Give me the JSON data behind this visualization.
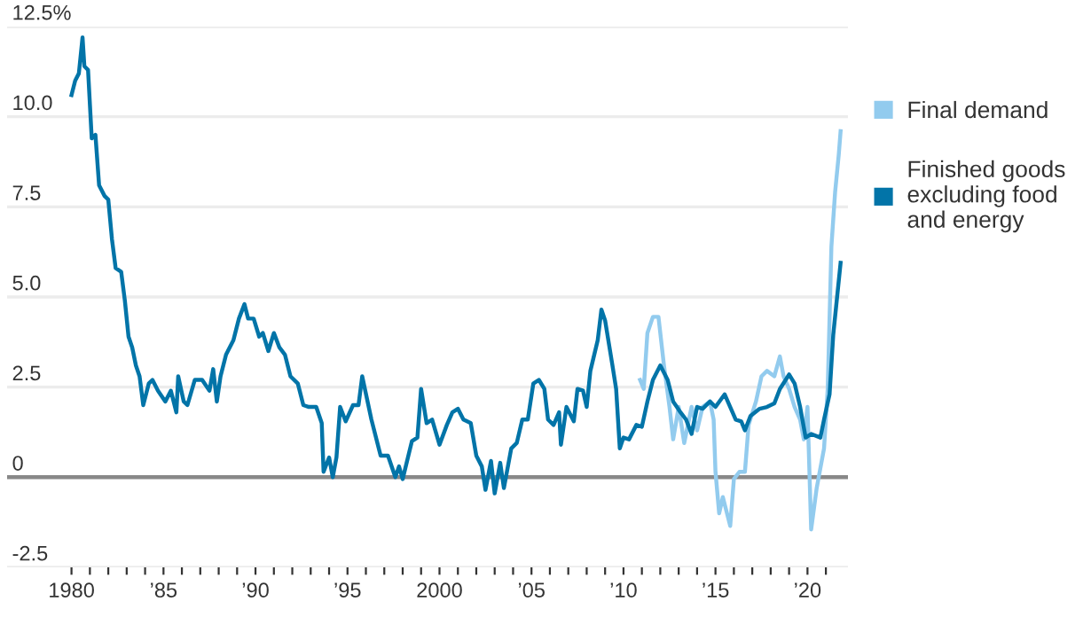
{
  "chart_data": {
    "type": "line",
    "xlim": [
      1976.5,
      2022.2
    ],
    "ylim": [
      -2.5,
      12.5
    ],
    "xticks": [
      {
        "value": 1980,
        "label": "1980"
      },
      {
        "value": 1981,
        "label": null
      },
      {
        "value": 1982,
        "label": null
      },
      {
        "value": 1983,
        "label": null
      },
      {
        "value": 1984,
        "label": null
      },
      {
        "value": 1985,
        "label": "’85"
      },
      {
        "value": 1986,
        "label": null
      },
      {
        "value": 1987,
        "label": null
      },
      {
        "value": 1988,
        "label": null
      },
      {
        "value": 1989,
        "label": null
      },
      {
        "value": 1990,
        "label": "’90"
      },
      {
        "value": 1991,
        "label": null
      },
      {
        "value": 1992,
        "label": null
      },
      {
        "value": 1993,
        "label": null
      },
      {
        "value": 1994,
        "label": null
      },
      {
        "value": 1995,
        "label": "’95"
      },
      {
        "value": 1996,
        "label": null
      },
      {
        "value": 1997,
        "label": null
      },
      {
        "value": 1998,
        "label": null
      },
      {
        "value": 1999,
        "label": null
      },
      {
        "value": 2000,
        "label": "2000"
      },
      {
        "value": 2001,
        "label": null
      },
      {
        "value": 2002,
        "label": null
      },
      {
        "value": 2003,
        "label": null
      },
      {
        "value": 2004,
        "label": null
      },
      {
        "value": 2005,
        "label": "’05"
      },
      {
        "value": 2006,
        "label": null
      },
      {
        "value": 2007,
        "label": null
      },
      {
        "value": 2008,
        "label": null
      },
      {
        "value": 2009,
        "label": null
      },
      {
        "value": 2010,
        "label": "’10"
      },
      {
        "value": 2011,
        "label": null
      },
      {
        "value": 2012,
        "label": null
      },
      {
        "value": 2013,
        "label": null
      },
      {
        "value": 2014,
        "label": null
      },
      {
        "value": 2015,
        "label": "’15"
      },
      {
        "value": 2016,
        "label": null
      },
      {
        "value": 2017,
        "label": null
      },
      {
        "value": 2018,
        "label": null
      },
      {
        "value": 2019,
        "label": null
      },
      {
        "value": 2020,
        "label": "’20"
      },
      {
        "value": 2021,
        "label": null
      }
    ],
    "yticks": [
      {
        "value": 12.5,
        "label": "12.5%"
      },
      {
        "value": 10,
        "label": "10.0"
      },
      {
        "value": 7.5,
        "label": "7.5"
      },
      {
        "value": 5,
        "label": "5.0"
      },
      {
        "value": 2.5,
        "label": "2.5"
      },
      {
        "value": 0,
        "label": "0"
      },
      {
        "value": -2.5,
        "label": "-2.5"
      }
    ],
    "grid": "y",
    "legend": "right",
    "marker": "none",
    "line_style": "solid",
    "ref_lines": [
      {
        "axis": "y",
        "value": 0,
        "color": "#888888"
      }
    ],
    "series": [
      {
        "name": "Final demand",
        "color": "#92cbee",
        "x": [
          2010.9,
          2011.1,
          2011.3,
          2011.6,
          2011.9,
          2012.2,
          2012.5,
          2012.7,
          2013.0,
          2013.3,
          2013.7,
          2014.0,
          2014.3,
          2014.7,
          2014.9,
          2015.0,
          2015.2,
          2015.4,
          2015.8,
          2016.0,
          2016.3,
          2016.6,
          2016.8,
          2017.2,
          2017.5,
          2017.8,
          2018.2,
          2018.5,
          2018.7,
          2019.0,
          2019.3,
          2019.6,
          2019.8,
          2020.0,
          2020.2,
          2020.5,
          2020.9,
          2021.1,
          2021.3,
          2021.5,
          2021.7,
          2021.8
        ],
        "values": [
          2.7,
          2.45,
          4.0,
          4.45,
          4.45,
          3.1,
          1.95,
          1.05,
          1.95,
          0.95,
          1.95,
          1.3,
          1.95,
          2.1,
          1.6,
          0.15,
          -1.0,
          -0.55,
          -1.35,
          -0.05,
          0.15,
          0.15,
          1.45,
          2.1,
          2.8,
          2.95,
          2.8,
          3.35,
          2.8,
          2.45,
          1.95,
          1.6,
          1.05,
          1.95,
          -1.45,
          -0.3,
          0.8,
          2.45,
          6.4,
          7.9,
          8.95,
          9.6
        ]
      },
      {
        "name": "Finished goods\nexcluding food\nand energy",
        "color": "#0274a8",
        "x": [
          1980.0,
          1980.2,
          1980.4,
          1980.6,
          1980.7,
          1980.9,
          1981.1,
          1981.3,
          1981.5,
          1981.8,
          1982.0,
          1982.2,
          1982.4,
          1982.7,
          1982.9,
          1983.1,
          1983.3,
          1983.5,
          1983.7,
          1983.9,
          1984.2,
          1984.4,
          1984.7,
          1985.1,
          1985.4,
          1985.7,
          1985.8,
          1986.1,
          1986.3,
          1986.7,
          1987.1,
          1987.5,
          1987.7,
          1987.9,
          1988.1,
          1988.4,
          1988.8,
          1989.1,
          1989.4,
          1989.6,
          1989.9,
          1990.2,
          1990.4,
          1990.7,
          1991.0,
          1991.3,
          1991.6,
          1991.9,
          1992.3,
          1992.6,
          1992.9,
          1993.3,
          1993.6,
          1993.7,
          1994.0,
          1994.2,
          1994.4,
          1994.6,
          1994.9,
          1995.3,
          1995.6,
          1995.8,
          1996.3,
          1996.8,
          1997.2,
          1997.6,
          1997.8,
          1998.0,
          1998.5,
          1998.8,
          1999.0,
          1999.3,
          1999.6,
          2000.0,
          2000.4,
          2000.7,
          2001.0,
          2001.3,
          2001.7,
          2002.0,
          2002.3,
          2002.5,
          2002.8,
          2003.0,
          2003.3,
          2003.5,
          2003.9,
          2004.2,
          2004.5,
          2004.8,
          2005.1,
          2005.4,
          2005.7,
          2005.9,
          2006.2,
          2006.5,
          2006.6,
          2006.9,
          2007.3,
          2007.5,
          2007.8,
          2008.0,
          2008.2,
          2008.6,
          2008.8,
          2009.0,
          2009.4,
          2009.6,
          2009.8,
          2010.0,
          2010.3,
          2010.7,
          2011.0,
          2011.3,
          2011.6,
          2012.0,
          2012.4,
          2012.7,
          2013.1,
          2013.4,
          2013.7,
          2014.0,
          2014.3,
          2014.7,
          2015.0,
          2015.5,
          2015.8,
          2016.1,
          2016.4,
          2016.6,
          2016.9,
          2017.4,
          2017.8,
          2018.2,
          2018.5,
          2019.0,
          2019.3,
          2019.6,
          2019.9,
          2020.2,
          2020.7,
          2020.9,
          2021.2,
          2021.4,
          2021.6,
          2021.8
        ],
        "values": [
          10.6,
          11.0,
          11.2,
          12.2,
          11.4,
          11.3,
          9.4,
          9.5,
          8.1,
          7.8,
          7.7,
          6.6,
          5.8,
          5.7,
          4.9,
          3.9,
          3.6,
          3.1,
          2.8,
          2.0,
          2.6,
          2.7,
          2.4,
          2.1,
          2.4,
          1.8,
          2.8,
          2.1,
          2.0,
          2.7,
          2.7,
          2.4,
          3.0,
          2.1,
          2.8,
          3.4,
          3.8,
          4.4,
          4.8,
          4.4,
          4.4,
          3.9,
          4.0,
          3.5,
          4.0,
          3.6,
          3.4,
          2.8,
          2.6,
          2.0,
          1.95,
          1.95,
          1.5,
          0.15,
          0.55,
          0.0,
          0.55,
          1.95,
          1.55,
          2.0,
          2.0,
          2.8,
          1.6,
          0.6,
          0.6,
          0.0,
          0.3,
          -0.05,
          1.0,
          1.1,
          2.45,
          1.5,
          1.6,
          0.9,
          1.45,
          1.8,
          1.9,
          1.6,
          1.5,
          0.6,
          0.3,
          -0.35,
          0.45,
          -0.45,
          0.4,
          -0.3,
          0.8,
          0.95,
          1.6,
          1.6,
          2.6,
          2.7,
          2.45,
          1.6,
          1.45,
          1.8,
          0.9,
          1.95,
          1.55,
          2.45,
          2.4,
          1.95,
          2.95,
          3.8,
          4.65,
          4.35,
          3.1,
          2.45,
          0.8,
          1.1,
          1.05,
          1.45,
          1.4,
          2.1,
          2.7,
          3.1,
          2.7,
          2.1,
          1.8,
          1.6,
          1.2,
          1.95,
          1.9,
          2.1,
          1.95,
          2.3,
          1.95,
          1.6,
          1.55,
          1.3,
          1.7,
          1.9,
          1.95,
          2.05,
          2.45,
          2.85,
          2.6,
          1.95,
          1.1,
          1.2,
          1.1,
          1.6,
          2.3,
          3.95,
          4.95,
          5.95
        ]
      }
    ]
  }
}
